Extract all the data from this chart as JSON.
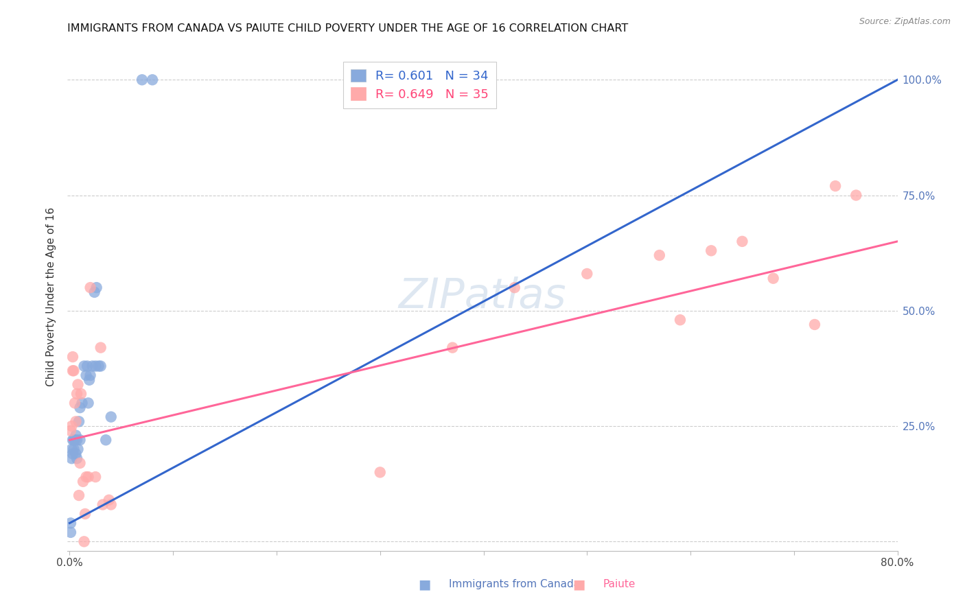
{
  "title": "IMMIGRANTS FROM CANADA VS PAIUTE CHILD POVERTY UNDER THE AGE OF 16 CORRELATION CHART",
  "source": "Source: ZipAtlas.com",
  "ylabel": "Child Poverty Under the Age of 16",
  "ytick_labels": [
    "",
    "25.0%",
    "50.0%",
    "75.0%",
    "100.0%"
  ],
  "ytick_values": [
    0,
    0.25,
    0.5,
    0.75,
    1.0
  ],
  "right_ytick_colors": [
    "#5588CC",
    "#5588CC",
    "#5588CC",
    "#5588CC",
    "#5588CC"
  ],
  "xlim": [
    -0.002,
    0.8
  ],
  "ylim": [
    -0.02,
    1.08
  ],
  "watermark": "ZIPatlas",
  "legend_r1": "R= 0.601   N = 34",
  "legend_r2": "R= 0.649   N = 35",
  "legend_label1": "Immigrants from Canada",
  "legend_label2": "Paiute",
  "blue_color": "#88AADD",
  "pink_color": "#FFAAAA",
  "blue_line_color": "#3366CC",
  "pink_line_color": "#FF6699",
  "canada_x": [
    0.001,
    0.001,
    0.002,
    0.002,
    0.003,
    0.003,
    0.004,
    0.004,
    0.005,
    0.006,
    0.006,
    0.007,
    0.007,
    0.008,
    0.009,
    0.01,
    0.01,
    0.012,
    0.014,
    0.016,
    0.017,
    0.018,
    0.019,
    0.02,
    0.022,
    0.024,
    0.025,
    0.026,
    0.028,
    0.03,
    0.035,
    0.04,
    0.07,
    0.08
  ],
  "canada_y": [
    0.02,
    0.04,
    0.18,
    0.2,
    0.19,
    0.22,
    0.2,
    0.22,
    0.22,
    0.23,
    0.19,
    0.22,
    0.18,
    0.2,
    0.26,
    0.29,
    0.22,
    0.3,
    0.38,
    0.36,
    0.38,
    0.3,
    0.35,
    0.36,
    0.38,
    0.54,
    0.38,
    0.55,
    0.38,
    0.38,
    0.22,
    0.27,
    1.0,
    1.0
  ],
  "paiute_x": [
    0.001,
    0.002,
    0.003,
    0.003,
    0.004,
    0.005,
    0.006,
    0.007,
    0.008,
    0.009,
    0.01,
    0.011,
    0.013,
    0.014,
    0.015,
    0.016,
    0.018,
    0.02,
    0.025,
    0.03,
    0.032,
    0.038,
    0.04,
    0.3,
    0.37,
    0.43,
    0.5,
    0.57,
    0.59,
    0.62,
    0.65,
    0.68,
    0.72,
    0.74,
    0.76
  ],
  "paiute_y": [
    0.24,
    0.25,
    0.37,
    0.4,
    0.37,
    0.3,
    0.26,
    0.32,
    0.34,
    0.1,
    0.17,
    0.32,
    0.13,
    0.0,
    0.06,
    0.14,
    0.14,
    0.55,
    0.14,
    0.42,
    0.08,
    0.09,
    0.08,
    0.15,
    0.42,
    0.55,
    0.58,
    0.62,
    0.48,
    0.63,
    0.65,
    0.57,
    0.47,
    0.77,
    0.75
  ]
}
